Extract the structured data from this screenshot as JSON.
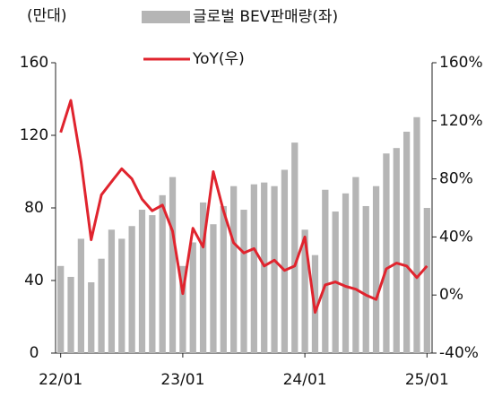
{
  "chart_data": {
    "type": "bar-line",
    "unit_label": "(만대)",
    "categories": [
      "22/01",
      null,
      null,
      null,
      null,
      null,
      null,
      null,
      null,
      null,
      null,
      null,
      "23/01",
      null,
      null,
      null,
      null,
      null,
      null,
      null,
      null,
      null,
      null,
      null,
      "24/01",
      null,
      null,
      null,
      null,
      null,
      null,
      null,
      null,
      null,
      null,
      null,
      "25/01"
    ],
    "series": [
      {
        "name": "글로벌 BEV판매량(좌)",
        "type": "bar",
        "color": "#b5b5b5",
        "axis": "y",
        "values": [
          48,
          42,
          63,
          39,
          52,
          68,
          63,
          70,
          79,
          76,
          87,
          97,
          48,
          61,
          83,
          71,
          81,
          92,
          79,
          93,
          94,
          92,
          101,
          116,
          68,
          54,
          90,
          78,
          88,
          97,
          81,
          92,
          110,
          113,
          122,
          130,
          80
        ]
      },
      {
        "name": "YoY(우)",
        "type": "line",
        "color": "#e0242e",
        "axis": "y2",
        "values": [
          112,
          134,
          92,
          38,
          69,
          78,
          87,
          80,
          66,
          58,
          62,
          44,
          1,
          46,
          33,
          85,
          58,
          36,
          29,
          32,
          20,
          24,
          17,
          20,
          40,
          -12,
          7,
          9,
          6,
          4,
          0,
          -3,
          18,
          22,
          20,
          12,
          20
        ]
      }
    ],
    "ylim": [
      0,
      160
    ],
    "yticks": [
      0,
      40,
      80,
      120,
      160
    ],
    "y2lim": [
      -40,
      160
    ],
    "y2ticks": [
      {
        "value": -40,
        "label": "-40%"
      },
      {
        "value": 0,
        "label": "0%"
      },
      {
        "value": 40,
        "label": "40%"
      },
      {
        "value": 80,
        "label": "80%"
      },
      {
        "value": 120,
        "label": "120%"
      },
      {
        "value": 160,
        "label": "160%"
      }
    ],
    "grid": false
  }
}
